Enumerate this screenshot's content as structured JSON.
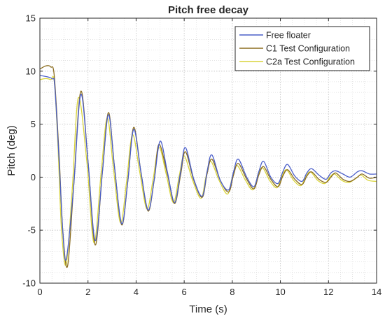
{
  "chart_data": {
    "type": "line",
    "title": "Pitch free decay",
    "xlabel": "Time (s)",
    "ylabel": "Pitch (deg)",
    "xlim": [
      0,
      14
    ],
    "ylim": [
      -10,
      15
    ],
    "xticks": [
      0,
      2,
      4,
      6,
      8,
      10,
      12,
      14
    ],
    "yticks": [
      -10,
      -5,
      0,
      5,
      10,
      15
    ],
    "grid": "on (dotted, major and minor)",
    "legend_position": "top-right",
    "series": [
      {
        "name": "Free floater",
        "color": "#4a5ec9",
        "x": [
          0,
          0.5,
          0.62,
          0.8,
          0.95,
          1.1,
          1.4,
          1.7,
          2.0,
          2.3,
          2.6,
          2.85,
          3.1,
          3.4,
          3.65,
          3.9,
          4.2,
          4.5,
          4.75,
          5.0,
          5.3,
          5.6,
          5.85,
          6.05,
          6.4,
          6.75,
          6.95,
          7.15,
          7.5,
          7.85,
          8.05,
          8.25,
          8.6,
          8.9,
          9.1,
          9.3,
          9.6,
          9.9,
          10.1,
          10.3,
          10.6,
          10.9,
          11.1,
          11.3,
          11.6,
          11.9,
          12.1,
          12.3,
          12.6,
          12.9,
          13.2,
          13.4,
          13.7,
          14.0
        ],
        "y": [
          9.6,
          9.3,
          8.5,
          1.5,
          -5.0,
          -7.7,
          -1.0,
          7.8,
          1.5,
          -6.0,
          0.5,
          5.9,
          1.0,
          -4.4,
          -0.5,
          4.5,
          0.5,
          -3.1,
          -0.3,
          3.4,
          0.5,
          -2.4,
          0.5,
          2.8,
          -0.2,
          -1.8,
          0.5,
          2.1,
          -0.3,
          -1.2,
          0.5,
          1.7,
          0.0,
          -0.9,
          0.5,
          1.5,
          0.0,
          -0.6,
          0.5,
          1.2,
          0.1,
          -0.4,
          0.4,
          0.8,
          0.2,
          -0.2,
          0.4,
          0.6,
          0.3,
          0.0,
          0.5,
          0.6,
          0.3,
          0.3
        ]
      },
      {
        "name": "C1 Test Configuration",
        "color": "#8b6d1f",
        "x": [
          0,
          0.25,
          0.45,
          0.6,
          0.8,
          0.95,
          1.15,
          1.4,
          1.7,
          2.0,
          2.3,
          2.6,
          2.85,
          3.1,
          3.4,
          3.65,
          3.9,
          4.2,
          4.5,
          4.75,
          4.95,
          5.3,
          5.6,
          5.85,
          6.05,
          6.4,
          6.75,
          6.95,
          7.15,
          7.5,
          7.85,
          8.05,
          8.25,
          8.6,
          8.9,
          9.1,
          9.3,
          9.6,
          9.9,
          10.1,
          10.3,
          10.6,
          10.9,
          11.1,
          11.3,
          11.6,
          11.9,
          12.1,
          12.3,
          12.6,
          12.9,
          13.2,
          13.4,
          13.7,
          14.0
        ],
        "y": [
          10.2,
          10.5,
          10.4,
          9.5,
          2.0,
          -5.0,
          -8.4,
          -1.0,
          8.1,
          1.5,
          -6.4,
          0.5,
          6.1,
          1.0,
          -4.5,
          -0.5,
          4.7,
          0.5,
          -3.2,
          -0.3,
          3.1,
          0.3,
          -2.5,
          0.2,
          2.4,
          -0.3,
          -1.9,
          0.3,
          1.7,
          -0.3,
          -1.4,
          0.2,
          1.3,
          -0.2,
          -1.1,
          0.2,
          1.0,
          -0.2,
          -0.9,
          0.1,
          0.7,
          -0.2,
          -0.7,
          0.1,
          0.5,
          -0.2,
          -0.5,
          0.0,
          0.4,
          -0.2,
          -0.4,
          0.0,
          0.3,
          -0.1,
          0.0
        ]
      },
      {
        "name": "C2a Test Configuration",
        "color": "#d9d43a",
        "x": [
          0,
          0.25,
          0.45,
          0.6,
          0.75,
          0.9,
          1.1,
          1.35,
          1.6,
          1.95,
          2.25,
          2.55,
          2.8,
          3.05,
          3.35,
          3.6,
          3.85,
          4.15,
          4.45,
          4.7,
          4.95,
          5.25,
          5.55,
          5.8,
          6.0,
          6.35,
          6.7,
          6.9,
          7.1,
          7.45,
          7.8,
          8.0,
          8.2,
          8.55,
          8.85,
          9.05,
          9.25,
          9.55,
          9.85,
          10.05,
          10.25,
          10.55,
          10.85,
          11.05,
          11.25,
          11.55,
          11.85,
          12.05,
          12.25,
          12.55,
          12.85,
          13.15,
          13.35,
          13.65,
          14.0
        ],
        "y": [
          9.2,
          9.3,
          9.2,
          9.0,
          3.0,
          -5.0,
          -8.2,
          -1.0,
          7.5,
          1.5,
          -6.2,
          0.5,
          5.6,
          1.0,
          -4.3,
          -0.5,
          4.0,
          0.5,
          -3.0,
          -0.3,
          2.8,
          0.3,
          -2.4,
          0.2,
          2.0,
          -0.3,
          -2.0,
          0.0,
          1.5,
          -0.3,
          -1.6,
          0.0,
          1.1,
          -0.3,
          -1.2,
          0.0,
          0.9,
          -0.3,
          -1.0,
          0.0,
          0.7,
          -0.3,
          -0.8,
          0.0,
          0.5,
          -0.3,
          -0.6,
          0.0,
          0.3,
          -0.3,
          -0.5,
          -0.1,
          0.2,
          -0.3,
          -0.4
        ]
      }
    ]
  }
}
